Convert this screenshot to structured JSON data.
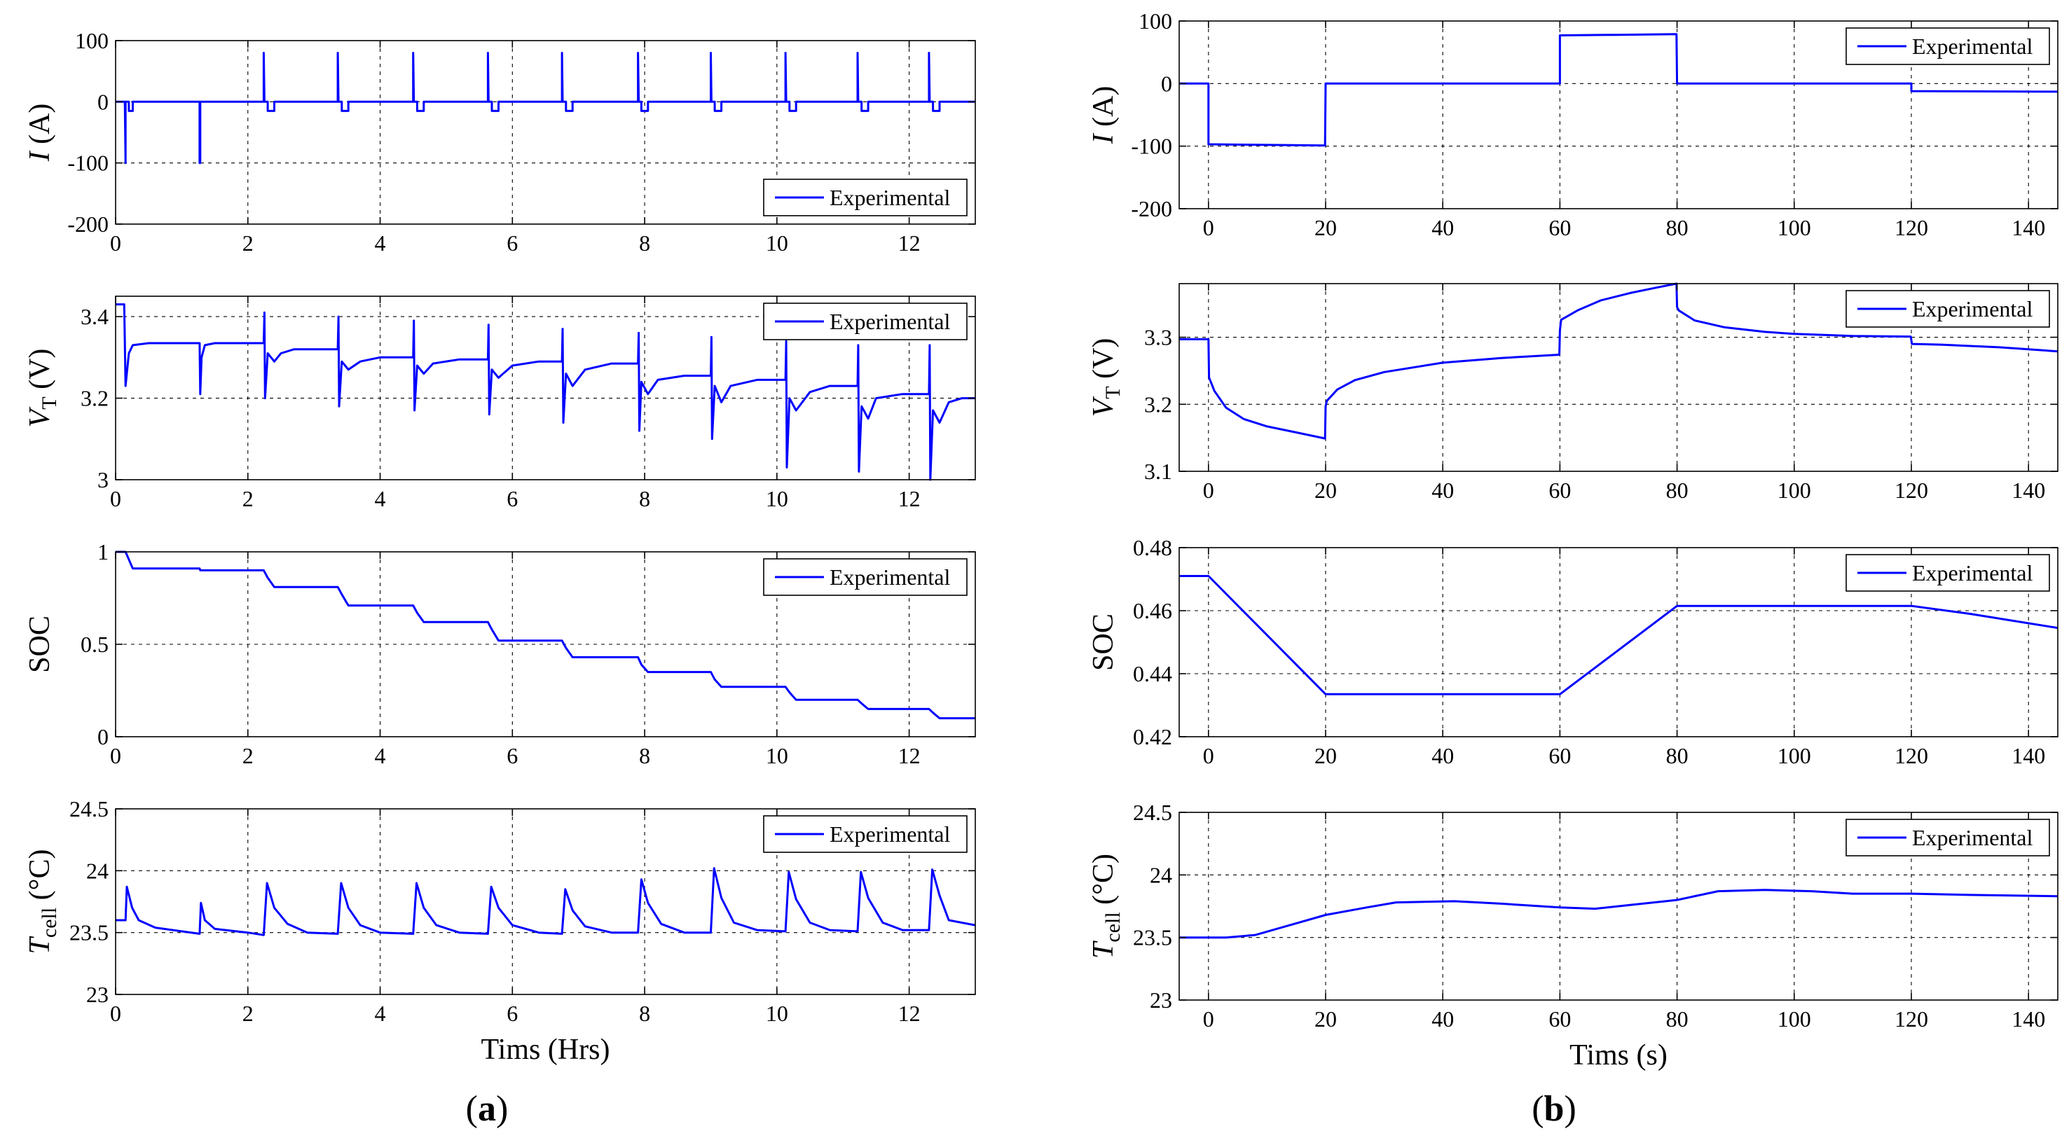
{
  "chart_data": [
    {
      "panel": "a",
      "type": "line",
      "title": "",
      "ylabel": {
        "main": "I",
        "unit": " (A)"
      },
      "xlabel": "",
      "xlim": [
        0,
        13
      ],
      "ylim": [
        -200,
        100
      ],
      "xticks": [
        0,
        2,
        4,
        6,
        8,
        10,
        12
      ],
      "yticks": [
        -200,
        -100,
        0,
        100
      ],
      "grid": true,
      "legend": {
        "entries": [
          "Experimental"
        ],
        "location": "bottom-right"
      },
      "series": [
        {
          "name": "Experimental",
          "x": [
            0,
            0.14,
            0.15,
            0.15,
            0.16,
            0.2,
            0.2,
            0.26,
            0.26,
            1.27,
            1.27,
            1.28,
            1.28,
            2.24,
            2.24,
            2.25,
            2.25,
            2.3,
            2.3,
            2.4,
            2.4,
            3.36,
            3.36,
            3.37,
            3.37,
            3.42,
            3.42,
            3.52,
            3.52,
            4.5,
            4.5,
            4.51,
            4.51,
            4.56,
            4.56,
            4.66,
            4.66,
            5.63,
            5.63,
            5.64,
            5.64,
            5.69,
            5.69,
            5.79,
            5.79,
            6.75,
            6.75,
            6.76,
            6.76,
            6.81,
            6.81,
            6.91,
            6.91,
            7.9,
            7.9,
            7.91,
            7.91,
            7.95,
            7.95,
            8.05,
            8.05,
            9.0,
            9.0,
            9.01,
            9.01,
            9.06,
            9.06,
            9.16,
            9.16,
            10.13,
            10.13,
            10.14,
            10.14,
            10.19,
            10.19,
            10.29,
            10.29,
            11.22,
            11.22,
            11.23,
            11.23,
            11.28,
            11.28,
            11.38,
            11.38,
            12.3,
            12.3,
            12.31,
            12.31,
            12.36,
            12.36,
            12.46,
            12.46,
            13
          ],
          "y": [
            0,
            0,
            -100,
            0,
            0,
            0,
            -15,
            -15,
            0,
            0,
            -100,
            -100,
            0,
            0,
            80,
            0,
            0,
            0,
            -15,
            -15,
            0,
            0,
            80,
            0,
            0,
            0,
            -15,
            -15,
            0,
            0,
            80,
            0,
            0,
            0,
            -15,
            -15,
            0,
            0,
            80,
            0,
            0,
            0,
            -15,
            -15,
            0,
            0,
            80,
            0,
            0,
            0,
            -15,
            -15,
            0,
            0,
            80,
            0,
            0,
            0,
            -15,
            -15,
            0,
            0,
            80,
            0,
            0,
            0,
            -15,
            -15,
            0,
            0,
            80,
            0,
            0,
            0,
            -15,
            -15,
            0,
            0,
            80,
            0,
            0,
            0,
            -15,
            -15,
            0,
            0,
            80,
            0,
            0,
            0,
            -15,
            -15,
            0,
            0
          ]
        }
      ]
    },
    {
      "panel": "a",
      "type": "line",
      "title": "",
      "ylabel": {
        "main": "V",
        "sub": "T",
        "unit": " (V)"
      },
      "xlabel": "",
      "xlim": [
        0,
        13
      ],
      "ylim": [
        3,
        3.45
      ],
      "xticks": [
        0,
        2,
        4,
        6,
        8,
        10,
        12
      ],
      "yticks": [
        3,
        3.2,
        3.4
      ],
      "grid": true,
      "legend": {
        "entries": [
          "Experimental"
        ],
        "location": "top-right"
      },
      "series": [
        {
          "name": "Experimental",
          "x": [
            0,
            0.13,
            0.15,
            0.2,
            0.23,
            0.26,
            0.5,
            1.0,
            1.27,
            1.28,
            1.3,
            1.35,
            1.5,
            2.0,
            2.24,
            2.25,
            2.26,
            2.3,
            2.4,
            2.5,
            2.7,
            3.0,
            3.36,
            3.37,
            3.38,
            3.42,
            3.52,
            3.7,
            4.0,
            4.5,
            4.51,
            4.52,
            4.56,
            4.66,
            4.8,
            5.2,
            5.63,
            5.64,
            5.65,
            5.69,
            5.79,
            6.0,
            6.4,
            6.75,
            6.76,
            6.77,
            6.81,
            6.91,
            7.1,
            7.5,
            7.9,
            7.91,
            7.92,
            7.95,
            8.05,
            8.2,
            8.6,
            9.0,
            9.01,
            9.02,
            9.06,
            9.16,
            9.3,
            9.7,
            10.13,
            10.14,
            10.15,
            10.19,
            10.29,
            10.5,
            10.8,
            11.22,
            11.23,
            11.24,
            11.28,
            11.38,
            11.5,
            11.9,
            12.3,
            12.31,
            12.32,
            12.36,
            12.46,
            12.6,
            12.8,
            13
          ],
          "y": [
            3.43,
            3.43,
            3.23,
            3.31,
            3.32,
            3.33,
            3.335,
            3.335,
            3.335,
            3.21,
            3.3,
            3.33,
            3.335,
            3.335,
            3.335,
            3.41,
            3.2,
            3.31,
            3.29,
            3.31,
            3.32,
            3.32,
            3.32,
            3.4,
            3.18,
            3.29,
            3.27,
            3.29,
            3.3,
            3.3,
            3.39,
            3.17,
            3.28,
            3.26,
            3.285,
            3.295,
            3.295,
            3.38,
            3.16,
            3.27,
            3.25,
            3.28,
            3.29,
            3.29,
            3.37,
            3.14,
            3.26,
            3.23,
            3.27,
            3.285,
            3.285,
            3.36,
            3.12,
            3.24,
            3.21,
            3.245,
            3.255,
            3.255,
            3.35,
            3.1,
            3.23,
            3.19,
            3.23,
            3.245,
            3.245,
            3.34,
            3.03,
            3.2,
            3.17,
            3.215,
            3.23,
            3.23,
            3.33,
            3.02,
            3.18,
            3.15,
            3.2,
            3.21,
            3.21,
            3.33,
            3.0,
            3.17,
            3.14,
            3.19,
            3.2,
            3.2
          ]
        }
      ]
    },
    {
      "panel": "a",
      "type": "line",
      "title": "",
      "ylabel": {
        "main": "SOC",
        "unit": ""
      },
      "xlabel": "",
      "xlim": [
        0,
        13
      ],
      "ylim": [
        0,
        1
      ],
      "xticks": [
        0,
        2,
        4,
        6,
        8,
        10,
        12
      ],
      "yticks": [
        0,
        0.5,
        1
      ],
      "grid": true,
      "legend": {
        "entries": [
          "Experimental"
        ],
        "location": "top-right"
      },
      "series": [
        {
          "name": "Experimental",
          "x": [
            0,
            0.15,
            0.26,
            1.27,
            1.28,
            2.24,
            2.3,
            2.4,
            3.36,
            3.42,
            3.52,
            4.5,
            4.56,
            4.66,
            5.63,
            5.69,
            5.79,
            6.75,
            6.81,
            6.91,
            7.9,
            7.95,
            8.05,
            9.0,
            9.06,
            9.16,
            10.13,
            10.19,
            10.29,
            11.22,
            11.28,
            11.38,
            12.3,
            12.36,
            12.46,
            13
          ],
          "y": [
            1,
            1,
            0.91,
            0.91,
            0.9,
            0.9,
            0.86,
            0.81,
            0.81,
            0.77,
            0.71,
            0.71,
            0.67,
            0.62,
            0.62,
            0.58,
            0.52,
            0.52,
            0.48,
            0.43,
            0.43,
            0.39,
            0.35,
            0.35,
            0.31,
            0.27,
            0.27,
            0.24,
            0.2,
            0.2,
            0.18,
            0.15,
            0.15,
            0.13,
            0.1,
            0.1
          ]
        }
      ]
    },
    {
      "panel": "a",
      "type": "line",
      "title": "",
      "ylabel": {
        "main": "T",
        "sub": "cell",
        "unit": " (°C)"
      },
      "xlabel": "Tims (Hrs)",
      "xlim": [
        0,
        13
      ],
      "ylim": [
        23,
        24.5
      ],
      "xticks": [
        0,
        2,
        4,
        6,
        8,
        10,
        12
      ],
      "yticks": [
        23,
        23.5,
        24,
        24.5
      ],
      "grid": true,
      "legend": {
        "entries": [
          "Experimental"
        ],
        "location": "top-right"
      },
      "series": [
        {
          "name": "Experimental",
          "x": [
            0,
            0.15,
            0.17,
            0.25,
            0.35,
            0.6,
            1.0,
            1.27,
            1.29,
            1.35,
            1.5,
            2.0,
            2.24,
            2.29,
            2.4,
            2.6,
            2.9,
            3.36,
            3.41,
            3.52,
            3.7,
            4.0,
            4.5,
            4.55,
            4.66,
            4.85,
            5.2,
            5.63,
            5.68,
            5.79,
            6.0,
            6.4,
            6.75,
            6.8,
            6.91,
            7.1,
            7.5,
            7.9,
            7.95,
            8.05,
            8.25,
            8.6,
            9.0,
            9.05,
            9.16,
            9.35,
            9.7,
            10.13,
            10.18,
            10.29,
            10.5,
            10.8,
            11.22,
            11.27,
            11.38,
            11.6,
            11.9,
            12.3,
            12.35,
            12.46,
            12.6,
            13
          ],
          "y": [
            23.6,
            23.6,
            23.87,
            23.7,
            23.6,
            23.54,
            23.51,
            23.49,
            23.74,
            23.6,
            23.53,
            23.5,
            23.48,
            23.9,
            23.7,
            23.57,
            23.5,
            23.49,
            23.9,
            23.7,
            23.56,
            23.5,
            23.49,
            23.9,
            23.7,
            23.56,
            23.5,
            23.49,
            23.87,
            23.7,
            23.56,
            23.5,
            23.49,
            23.85,
            23.68,
            23.55,
            23.5,
            23.5,
            23.93,
            23.74,
            23.57,
            23.5,
            23.5,
            24.02,
            23.78,
            23.58,
            23.52,
            23.51,
            23.99,
            23.77,
            23.58,
            23.52,
            23.51,
            23.99,
            23.78,
            23.58,
            23.52,
            23.52,
            24.01,
            23.8,
            23.6,
            23.56
          ]
        }
      ]
    },
    {
      "panel": "b",
      "type": "line",
      "title": "",
      "ylabel": {
        "main": "I",
        "unit": " (A)"
      },
      "xlabel": "",
      "xlim": [
        -5,
        145
      ],
      "ylim": [
        -200,
        100
      ],
      "xticks": [
        0,
        20,
        40,
        60,
        80,
        100,
        120,
        140
      ],
      "yticks": [
        -200,
        -100,
        0,
        100
      ],
      "grid": true,
      "legend": {
        "entries": [
          "Experimental"
        ],
        "location": "top-right"
      },
      "series": [
        {
          "name": "Experimental",
          "x": [
            -5,
            0,
            0,
            10,
            19.9,
            20,
            60,
            60,
            70,
            79.9,
            80,
            120,
            120,
            145
          ],
          "y": [
            0,
            0,
            -97,
            -98,
            -99,
            0,
            0,
            77,
            78,
            79,
            0,
            0,
            -12,
            -13
          ]
        }
      ]
    },
    {
      "panel": "b",
      "type": "line",
      "title": "",
      "ylabel": {
        "main": "V",
        "sub": "T",
        "unit": " (V)"
      },
      "xlabel": "",
      "xlim": [
        -5,
        145
      ],
      "ylim": [
        3.1,
        3.38
      ],
      "xticks": [
        0,
        20,
        40,
        60,
        80,
        100,
        120,
        140
      ],
      "yticks": [
        3.1,
        3.2,
        3.3
      ],
      "grid": true,
      "legend": {
        "entries": [
          "Experimental"
        ],
        "location": "top-right"
      },
      "series": [
        {
          "name": "Experimental",
          "x": [
            -5,
            0,
            0.1,
            1,
            3,
            6,
            10,
            15,
            19.9,
            20,
            20.2,
            22,
            25,
            30,
            40,
            50,
            59.9,
            60,
            60.2,
            63,
            67,
            72,
            77,
            79.9,
            80,
            80.3,
            83,
            88,
            95,
            100,
            110,
            119.9,
            120.1,
            125,
            135,
            145
          ],
          "y": [
            3.297,
            3.297,
            3.24,
            3.22,
            3.195,
            3.178,
            3.167,
            3.158,
            3.149,
            3.197,
            3.205,
            3.222,
            3.236,
            3.248,
            3.262,
            3.269,
            3.274,
            3.31,
            3.326,
            3.34,
            3.355,
            3.366,
            3.375,
            3.38,
            3.345,
            3.34,
            3.325,
            3.315,
            3.308,
            3.305,
            3.302,
            3.301,
            3.29,
            3.289,
            3.285,
            3.279
          ]
        }
      ]
    },
    {
      "panel": "b",
      "type": "line",
      "title": "",
      "ylabel": {
        "main": "SOC",
        "unit": ""
      },
      "xlabel": "",
      "xlim": [
        -5,
        145
      ],
      "ylim": [
        0.42,
        0.48
      ],
      "xticks": [
        0,
        20,
        40,
        60,
        80,
        100,
        120,
        140
      ],
      "yticks": [
        0.42,
        0.44,
        0.46,
        0.48
      ],
      "grid": true,
      "legend": {
        "entries": [
          "Experimental"
        ],
        "location": "top-right"
      },
      "series": [
        {
          "name": "Experimental",
          "x": [
            -5,
            0,
            20,
            60,
            80,
            120,
            130,
            145
          ],
          "y": [
            0.471,
            0.471,
            0.4335,
            0.4335,
            0.4615,
            0.4615,
            0.459,
            0.4545
          ]
        }
      ]
    },
    {
      "panel": "b",
      "type": "line",
      "title": "",
      "ylabel": {
        "main": "T",
        "sub": "cell",
        "unit": " (°C)"
      },
      "xlabel": "Tims (s)",
      "xlim": [
        -5,
        145
      ],
      "ylim": [
        23,
        24.5
      ],
      "xticks": [
        0,
        20,
        40,
        60,
        80,
        100,
        120,
        140
      ],
      "yticks": [
        23,
        23.5,
        24,
        24.5
      ],
      "grid": true,
      "legend": {
        "entries": [
          "Experimental"
        ],
        "location": "top-right"
      },
      "series": [
        {
          "name": "Experimental",
          "x": [
            -5,
            3,
            8,
            14,
            20,
            27,
            32,
            42,
            50,
            60,
            66,
            72,
            80,
            87,
            95,
            103,
            110,
            120,
            130,
            145
          ],
          "y": [
            23.5,
            23.5,
            23.52,
            23.6,
            23.68,
            23.74,
            23.78,
            23.79,
            23.77,
            23.74,
            23.73,
            23.76,
            23.8,
            23.87,
            23.88,
            23.87,
            23.85,
            23.85,
            23.84,
            23.83
          ]
        }
      ]
    }
  ],
  "captions": [
    "a",
    "b"
  ]
}
